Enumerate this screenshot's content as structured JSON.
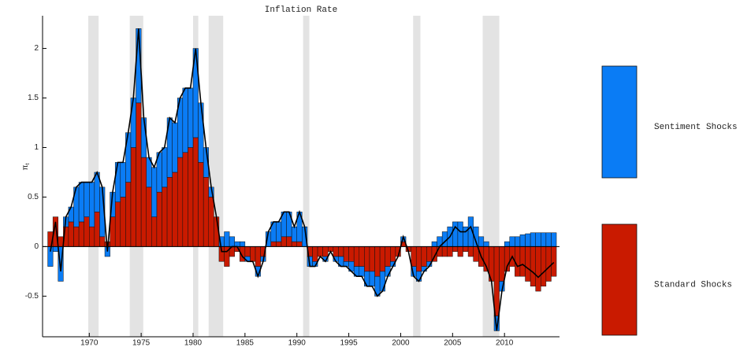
{
  "chart_data": {
    "type": "stacked-bar",
    "title": "Inflation Rate",
    "y_label": "π",
    "y_label_sub": "t",
    "x": [
      1966,
      1966.5,
      1967,
      1967.5,
      1968,
      1968.5,
      1969,
      1969.5,
      1970,
      1970.5,
      1971,
      1971.5,
      1972,
      1972.5,
      1973,
      1973.5,
      1974,
      1974.5,
      1975,
      1975.5,
      1976,
      1976.5,
      1977,
      1977.5,
      1978,
      1978.5,
      1979,
      1979.5,
      1980,
      1980.5,
      1981,
      1981.5,
      1982,
      1982.5,
      1983,
      1983.5,
      1984,
      1984.5,
      1985,
      1985.5,
      1986,
      1986.5,
      1987,
      1987.5,
      1988,
      1988.5,
      1989,
      1989.5,
      1990,
      1990.5,
      1991,
      1991.5,
      1992,
      1992.5,
      1993,
      1993.5,
      1994,
      1994.5,
      1995,
      1995.5,
      1996,
      1996.5,
      1997,
      1997.5,
      1998,
      1998.5,
      1999,
      1999.5,
      2000,
      2000.5,
      2001,
      2001.5,
      2002,
      2002.5,
      2003,
      2003.5,
      2004,
      2004.5,
      2005,
      2005.5,
      2006,
      2006.5,
      2007,
      2007.5,
      2008,
      2008.5,
      2009,
      2009.5,
      2010,
      2010.5,
      2011,
      2011.5,
      2012,
      2012.5,
      2013,
      2013.5,
      2014,
      2014.5
    ],
    "series": [
      {
        "name": "Sentiment Shocks",
        "color": "#0a7cf5",
        "values": [
          -0.2,
          -0.05,
          -0.35,
          0.1,
          0.15,
          0.4,
          0.4,
          0.35,
          0.45,
          0.4,
          0.5,
          -0.1,
          0.25,
          0.4,
          0.35,
          0.5,
          0.5,
          0.75,
          0.4,
          0.3,
          0.5,
          0.4,
          0.4,
          0.6,
          0.5,
          0.6,
          0.65,
          0.6,
          0.9,
          0.6,
          0.3,
          0.1,
          0.0,
          0.1,
          0.15,
          0.1,
          0.05,
          0.05,
          -0.05,
          0.0,
          -0.1,
          -0.05,
          0.15,
          0.2,
          0.2,
          0.25,
          0.25,
          0.15,
          0.3,
          0.2,
          -0.1,
          -0.05,
          0.0,
          -0.05,
          0.0,
          -0.05,
          -0.1,
          -0.05,
          -0.1,
          -0.1,
          -0.1,
          -0.15,
          -0.15,
          -0.2,
          -0.2,
          -0.1,
          -0.05,
          0.0,
          0.05,
          0.0,
          -0.1,
          -0.1,
          -0.05,
          -0.05,
          0.05,
          0.1,
          0.15,
          0.2,
          0.25,
          0.25,
          0.2,
          0.3,
          0.2,
          0.1,
          0.05,
          0.0,
          -0.15,
          -0.1,
          0.05,
          0.1,
          0.1,
          0.12,
          0.13,
          0.14,
          0.14,
          0.14,
          0.14,
          0.14
        ]
      },
      {
        "name": "Standard Shocks",
        "color": "#c91a00",
        "values": [
          0.15,
          0.3,
          0.1,
          0.2,
          0.25,
          0.2,
          0.25,
          0.3,
          0.2,
          0.35,
          0.1,
          0.05,
          0.3,
          0.45,
          0.5,
          0.65,
          1.0,
          1.45,
          0.9,
          0.6,
          0.3,
          0.55,
          0.6,
          0.7,
          0.75,
          0.9,
          0.95,
          1.0,
          1.1,
          0.85,
          0.7,
          0.5,
          0.3,
          -0.15,
          -0.2,
          -0.1,
          -0.05,
          -0.15,
          -0.1,
          -0.15,
          -0.2,
          -0.1,
          0.0,
          0.05,
          0.05,
          0.1,
          0.1,
          0.05,
          0.05,
          0.0,
          -0.1,
          -0.15,
          -0.1,
          -0.1,
          -0.05,
          -0.1,
          -0.1,
          -0.15,
          -0.15,
          -0.2,
          -0.2,
          -0.25,
          -0.25,
          -0.3,
          -0.25,
          -0.2,
          -0.15,
          -0.1,
          0.05,
          -0.05,
          -0.2,
          -0.25,
          -0.2,
          -0.15,
          -0.15,
          -0.1,
          -0.1,
          -0.1,
          -0.05,
          -0.1,
          -0.05,
          -0.1,
          -0.15,
          -0.2,
          -0.25,
          -0.35,
          -0.7,
          -0.35,
          -0.25,
          -0.2,
          -0.3,
          -0.3,
          -0.35,
          -0.4,
          -0.45,
          -0.4,
          -0.35,
          -0.3
        ]
      }
    ],
    "bar_width": 0.5,
    "shading": [
      [
        1969.9,
        1970.9
      ],
      [
        1973.9,
        1975.2
      ],
      [
        1980.0,
        1980.5
      ],
      [
        1981.5,
        1982.9
      ],
      [
        1990.6,
        1991.2
      ],
      [
        2001.2,
        2001.9
      ],
      [
        2007.9,
        2009.5
      ]
    ],
    "xlim": [
      1965.5,
      2015.3
    ],
    "ylim": [
      -0.91,
      2.33
    ],
    "xticks": [
      1970,
      1975,
      1980,
      1985,
      1990,
      1995,
      2000,
      2005,
      2010
    ],
    "yticks": [
      -0.5,
      0,
      0.5,
      1,
      1.5,
      2
    ],
    "legend": "right"
  }
}
